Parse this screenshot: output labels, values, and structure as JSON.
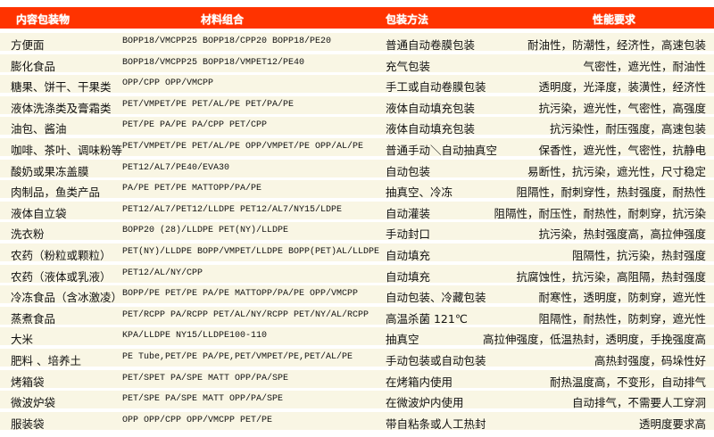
{
  "header": {
    "product": "内容包装物",
    "material": "材料组合",
    "method": "包装方法",
    "performance": "性能要求"
  },
  "colors": {
    "header_bg": "#ff3300",
    "row_bg": "#f9f6e4"
  },
  "rows": [
    {
      "product": "方便面",
      "material": "BOPP18/VMCPP25  BOPP18/CPP20  BOPP18/PE20",
      "method": "普通自动卷膜包装",
      "performance": "耐油性，防潮性，经济性，高速包装"
    },
    {
      "product": "膨化食品",
      "material": "BOPP18/VMCPP25  BOPP18/VMPET12/PE40",
      "method": "充气包装",
      "performance": "气密性，遮光性，耐油性"
    },
    {
      "product": "糖果、饼干、干果类",
      "material": "OPP/CPP OPP/VMCPP",
      "method": "手工或自动卷膜包装",
      "performance": "透明度，光泽度，装潢性，经济性"
    },
    {
      "product": "液体洗涤类及膏霜类",
      "material": "PET/VMPET/PE PET/AL/PE  PET/PA/PE",
      "method": "液体自动填充包装",
      "performance": "抗污染，遮光性，气密性，高强度"
    },
    {
      "product": "油包、酱油",
      "material": "PET/PE  PA/PE PA/CPP PET/CPP",
      "method": "液体自动填充包装",
      "performance": "抗污染性，耐压强度，高速包装"
    },
    {
      "product": "咖啡、茶叶、调味粉等",
      "material": "PET/VMPET/PE PET/AL/PE OPP/VMPET/PE OPP/AL/PE",
      "method": "普通手动＼自动抽真空",
      "performance": "保香性，遮光性，气密性，抗静电"
    },
    {
      "product": "酸奶或果冻盖膜",
      "material": "PET12/AL7/PE40/EVA30",
      "method": "自动包装",
      "performance": "易断性，抗污染，遮光性，尺寸稳定"
    },
    {
      "product": "肉制品，鱼类产品",
      "material": "PA/PE PET/PE MATTOPP/PA/PE",
      "method": "抽真空、冷冻",
      "performance": "阻隔性，耐刺穿性，热封强度，耐热性"
    },
    {
      "product": "液体自立袋",
      "material": "PET12/AL7/PET12/LLDPE PET12/AL7/NY15/LDPE",
      "method": "自动灌装",
      "performance": "阻隔性，耐压性，耐热性，耐刺穿，抗污染"
    },
    {
      "product": "洗衣粉",
      "material": "BOPP20 (28)/LLDPE PET(NY)/LLDPE",
      "method": "手动封口",
      "performance": "抗污染，热封强度高，高拉伸强度"
    },
    {
      "product": "农药（粉粒或颗粒）",
      "material": "PET(NY)/LLDPE BOPP/VMPET/LLDPE BOPP(PET)AL/LLDPE",
      "method": "自动填充",
      "performance": "阻隔性，抗污染，热封强度"
    },
    {
      "product": "农药（液体或乳液）",
      "material": "PET12/AL/NY/CPP",
      "method": "自动填充",
      "performance": "抗腐蚀性，抗污染，高阻隔，热封强度"
    },
    {
      "product": "冷冻食品（含冰激凌）",
      "material": "BOPP/PE PET/PE PA/PE MATTOPP/PA/PE OPP/VMCPP",
      "method": "自动包装、冷藏包装",
      "performance": "耐寒性，透明度，防刺穿，遮光性"
    },
    {
      "product": "蒸煮食品",
      "material": "PET/RCPP PA/RCPP PET/AL/NY/RCPP PET/NY/AL/RCPP",
      "method": "高温杀菌 121℃",
      "performance": "阻隔性，耐热性，防刺穿，遮光性"
    },
    {
      "product": "大米",
      "material": "KPA/LLDPE NY15/LLDPE100-110",
      "method": "抽真空",
      "performance": "高拉伸强度，低温热封，透明度，手挽强度高"
    },
    {
      "product": "肥料 、培养土",
      "material": "PE Tube,PET/PE  PA/PE,PET/VMPET/PE,PET/AL/PE",
      "method": "手动包装或自动包装",
      "performance": "高热封强度，码垛性好"
    },
    {
      "product": "烤箱袋",
      "material": "PET/SPET PA/SPE MATT OPP/PA/SPE",
      "method": "在烤箱内使用",
      "performance": "耐热温度高，不变形，自动排气"
    },
    {
      "product": "微波炉袋",
      "material": "PET/SPE PA/SPE MATT OPP/PA/SPE",
      "method": "在微波炉内使用",
      "performance": "自动排气，不需要人工穿洞"
    },
    {
      "product": "服装袋",
      "material": "OPP  OPP/CPP OPP/VMCPP PET/PE",
      "method": "带自粘条或人工热封",
      "performance": "透明度要求高"
    }
  ]
}
